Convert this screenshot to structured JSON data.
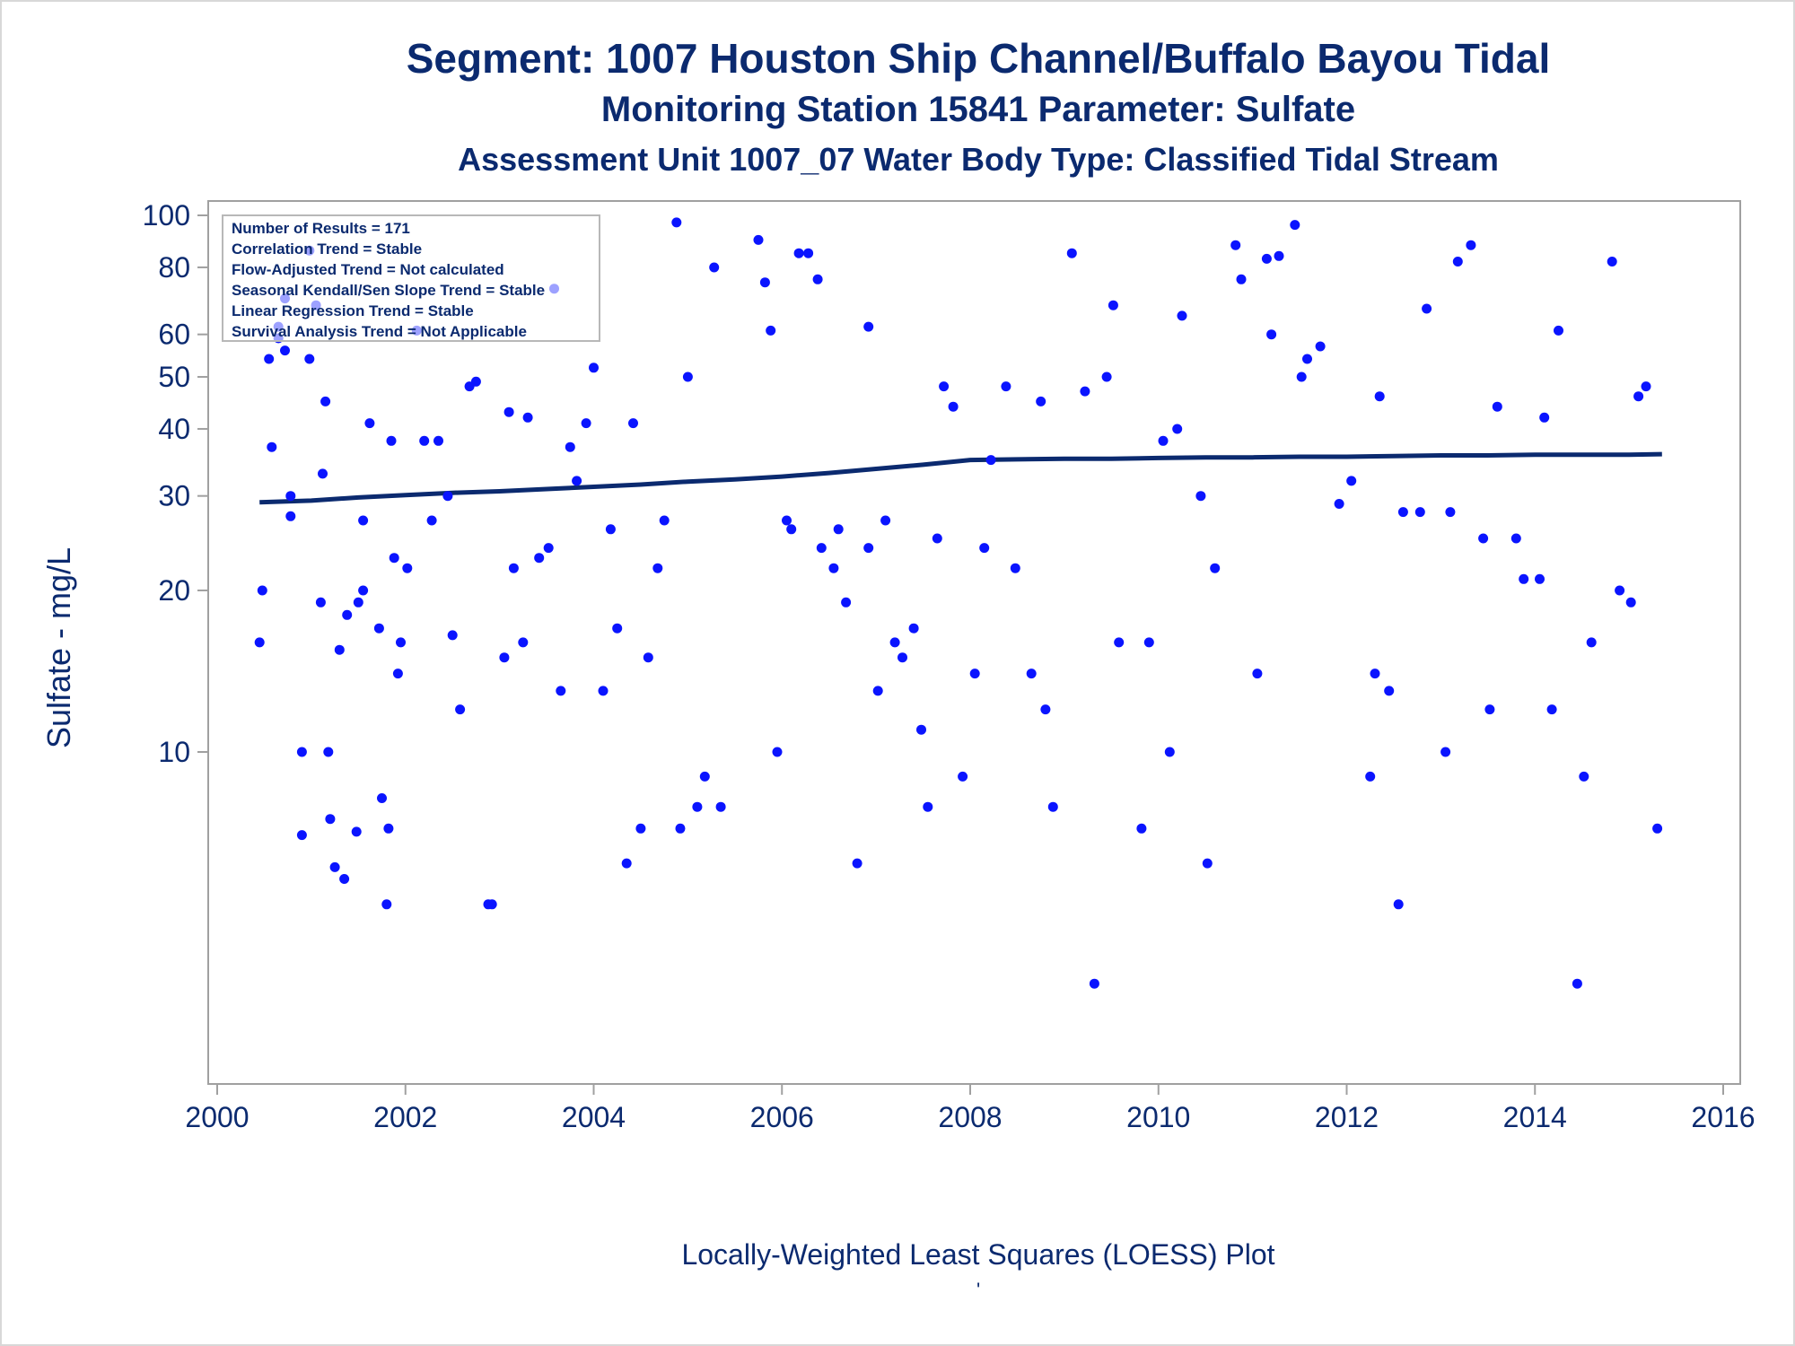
{
  "titles": {
    "line1": "Segment: 1007  Houston Ship Channel/Buffalo Bayou Tidal",
    "line2": "Monitoring Station 15841 Parameter: Sulfate",
    "line3": "Assessment Unit 1007_07   Water Body Type: Classified Tidal Stream"
  },
  "footnote": "Locally-Weighted Least Squares (LOESS) Plot",
  "footnote_mark": "'",
  "colors": {
    "points": "#0a14ff",
    "trend": "#0b2a6f",
    "text": "#0b2a6f",
    "frame": "#a0a0a0"
  },
  "chart_data": {
    "type": "scatter",
    "ylabel": "Sulfate - mg/L",
    "xlabel": "",
    "y_scale": "log",
    "xlim": [
      2000,
      2016
    ],
    "ylim": [
      3.6,
      105
    ],
    "x_ticks": [
      2000,
      2002,
      2004,
      2006,
      2008,
      2010,
      2012,
      2014,
      2016
    ],
    "y_ticks": [
      10,
      20,
      30,
      40,
      50,
      60,
      80,
      100
    ],
    "legend_placement": "top-left",
    "info_box": [
      "Number of Results = 171",
      "Correlation Trend = Stable",
      "Flow-Adjusted Trend = Not calculated",
      "Seasonal Kendall/Sen Slope Trend = Stable",
      "Linear Regression Trend = Stable",
      "Survival Analysis Trend = Not Applicable"
    ],
    "series": [
      {
        "type": "scatter",
        "points": [
          [
            2000.45,
            16
          ],
          [
            2000.48,
            20
          ],
          [
            2000.55,
            54
          ],
          [
            2000.58,
            37
          ],
          [
            2000.65,
            59
          ],
          [
            2000.65,
            62
          ],
          [
            2000.72,
            70
          ],
          [
            2000.72,
            56
          ],
          [
            2000.78,
            30
          ],
          [
            2000.78,
            27.5
          ],
          [
            2000.9,
            10
          ],
          [
            2000.9,
            7
          ],
          [
            2000.98,
            86
          ],
          [
            2000.98,
            54
          ],
          [
            2001.05,
            68
          ],
          [
            2001.1,
            19
          ],
          [
            2001.12,
            33
          ],
          [
            2001.15,
            45
          ],
          [
            2001.18,
            10
          ],
          [
            2001.2,
            7.5
          ],
          [
            2001.25,
            6.1
          ],
          [
            2001.3,
            15.5
          ],
          [
            2001.35,
            5.8
          ],
          [
            2001.38,
            18
          ],
          [
            2001.48,
            7.1
          ],
          [
            2001.5,
            19
          ],
          [
            2001.55,
            27
          ],
          [
            2001.55,
            20
          ],
          [
            2001.62,
            41
          ],
          [
            2001.72,
            17
          ],
          [
            2001.75,
            8.2
          ],
          [
            2001.8,
            5.2
          ],
          [
            2001.82,
            7.2
          ],
          [
            2001.85,
            38
          ],
          [
            2001.88,
            23
          ],
          [
            2001.92,
            14
          ],
          [
            2001.95,
            16
          ],
          [
            2002.02,
            22
          ],
          [
            2002.12,
            61
          ],
          [
            2002.2,
            38
          ],
          [
            2002.28,
            27
          ],
          [
            2002.35,
            38
          ],
          [
            2002.45,
            30
          ],
          [
            2002.5,
            16.5
          ],
          [
            2002.58,
            12
          ],
          [
            2002.68,
            48
          ],
          [
            2002.75,
            49
          ],
          [
            2002.88,
            5.2
          ],
          [
            2002.92,
            5.2
          ],
          [
            2003.05,
            15
          ],
          [
            2003.1,
            43
          ],
          [
            2003.15,
            22
          ],
          [
            2003.25,
            16
          ],
          [
            2003.3,
            42
          ],
          [
            2003.42,
            23
          ],
          [
            2003.52,
            24
          ],
          [
            2003.58,
            73
          ],
          [
            2003.65,
            13
          ],
          [
            2003.75,
            37
          ],
          [
            2003.82,
            32
          ],
          [
            2003.92,
            41
          ],
          [
            2004.0,
            52
          ],
          [
            2004.1,
            13
          ],
          [
            2004.18,
            26
          ],
          [
            2004.25,
            17
          ],
          [
            2004.35,
            6.2
          ],
          [
            2004.42,
            41
          ],
          [
            2004.5,
            7.2
          ],
          [
            2004.58,
            15
          ],
          [
            2004.68,
            22
          ],
          [
            2004.75,
            27
          ],
          [
            2004.88,
            97
          ],
          [
            2004.92,
            7.2
          ],
          [
            2005.0,
            50
          ],
          [
            2005.1,
            7.9
          ],
          [
            2005.18,
            9
          ],
          [
            2005.28,
            80
          ],
          [
            2005.35,
            7.9
          ],
          [
            2005.75,
            90
          ],
          [
            2005.82,
            75
          ],
          [
            2005.88,
            61
          ],
          [
            2005.95,
            10
          ],
          [
            2006.05,
            27
          ],
          [
            2006.1,
            26
          ],
          [
            2006.18,
            85
          ],
          [
            2006.28,
            85
          ],
          [
            2006.38,
            76
          ],
          [
            2006.42,
            24
          ],
          [
            2006.55,
            22
          ],
          [
            2006.6,
            26
          ],
          [
            2006.68,
            19
          ],
          [
            2006.8,
            6.2
          ],
          [
            2006.92,
            24
          ],
          [
            2006.92,
            62
          ],
          [
            2007.02,
            13
          ],
          [
            2007.1,
            27
          ],
          [
            2007.2,
            16
          ],
          [
            2007.28,
            15
          ],
          [
            2007.4,
            17
          ],
          [
            2007.48,
            11
          ],
          [
            2007.55,
            7.9
          ],
          [
            2007.65,
            25
          ],
          [
            2007.72,
            48
          ],
          [
            2007.82,
            44
          ],
          [
            2007.92,
            9
          ],
          [
            2008.05,
            14
          ],
          [
            2008.15,
            24
          ],
          [
            2008.22,
            35
          ],
          [
            2008.38,
            48
          ],
          [
            2008.48,
            22
          ],
          [
            2008.65,
            14
          ],
          [
            2008.75,
            45
          ],
          [
            2008.8,
            12
          ],
          [
            2008.88,
            7.9
          ],
          [
            2009.08,
            85
          ],
          [
            2009.22,
            47
          ],
          [
            2009.32,
            3.7
          ],
          [
            2009.45,
            50
          ],
          [
            2009.52,
            68
          ],
          [
            2009.58,
            16
          ],
          [
            2009.82,
            7.2
          ],
          [
            2009.9,
            16
          ],
          [
            2010.05,
            38
          ],
          [
            2010.12,
            10
          ],
          [
            2010.2,
            40
          ],
          [
            2010.25,
            65
          ],
          [
            2010.45,
            30
          ],
          [
            2010.52,
            6.2
          ],
          [
            2010.6,
            22
          ],
          [
            2010.82,
            88
          ],
          [
            2010.88,
            76
          ],
          [
            2011.05,
            14
          ],
          [
            2011.15,
            83
          ],
          [
            2011.2,
            60
          ],
          [
            2011.28,
            84
          ],
          [
            2011.45,
            96
          ],
          [
            2011.52,
            50
          ],
          [
            2011.58,
            54
          ],
          [
            2011.72,
            57
          ],
          [
            2011.92,
            29
          ],
          [
            2012.05,
            32
          ],
          [
            2012.25,
            9
          ],
          [
            2012.3,
            14
          ],
          [
            2012.35,
            46
          ],
          [
            2012.45,
            13
          ],
          [
            2012.55,
            5.2
          ],
          [
            2012.6,
            28
          ],
          [
            2012.78,
            28
          ],
          [
            2012.85,
            67
          ],
          [
            2013.05,
            10
          ],
          [
            2013.1,
            28
          ],
          [
            2013.18,
            82
          ],
          [
            2013.32,
            88
          ],
          [
            2013.45,
            25
          ],
          [
            2013.52,
            12
          ],
          [
            2013.6,
            44
          ],
          [
            2013.8,
            25
          ],
          [
            2013.88,
            21
          ],
          [
            2014.05,
            21
          ],
          [
            2014.1,
            42
          ],
          [
            2014.18,
            12
          ],
          [
            2014.25,
            61
          ],
          [
            2014.45,
            3.7
          ],
          [
            2014.52,
            9
          ],
          [
            2014.6,
            16
          ],
          [
            2014.82,
            82
          ],
          [
            2014.9,
            20
          ],
          [
            2015.02,
            19
          ],
          [
            2015.1,
            46
          ],
          [
            2015.18,
            48
          ],
          [
            2015.3,
            7.2
          ]
        ]
      },
      {
        "type": "line",
        "points": [
          [
            2000.45,
            29.2
          ],
          [
            2001.0,
            29.4
          ],
          [
            2001.5,
            29.8
          ],
          [
            2002.0,
            30.1
          ],
          [
            2002.5,
            30.4
          ],
          [
            2003.0,
            30.6
          ],
          [
            2003.5,
            30.9
          ],
          [
            2004.0,
            31.2
          ],
          [
            2004.5,
            31.5
          ],
          [
            2005.0,
            31.9
          ],
          [
            2005.5,
            32.2
          ],
          [
            2006.0,
            32.6
          ],
          [
            2006.5,
            33.1
          ],
          [
            2007.0,
            33.7
          ],
          [
            2007.5,
            34.3
          ],
          [
            2008.0,
            35.0
          ],
          [
            2008.5,
            35.1
          ],
          [
            2009.0,
            35.2
          ],
          [
            2009.5,
            35.2
          ],
          [
            2010.0,
            35.3
          ],
          [
            2010.5,
            35.4
          ],
          [
            2011.0,
            35.4
          ],
          [
            2011.5,
            35.5
          ],
          [
            2012.0,
            35.5
          ],
          [
            2012.5,
            35.6
          ],
          [
            2013.0,
            35.7
          ],
          [
            2013.5,
            35.7
          ],
          [
            2014.0,
            35.8
          ],
          [
            2014.5,
            35.8
          ],
          [
            2015.0,
            35.8
          ],
          [
            2015.35,
            35.9
          ]
        ]
      }
    ]
  }
}
